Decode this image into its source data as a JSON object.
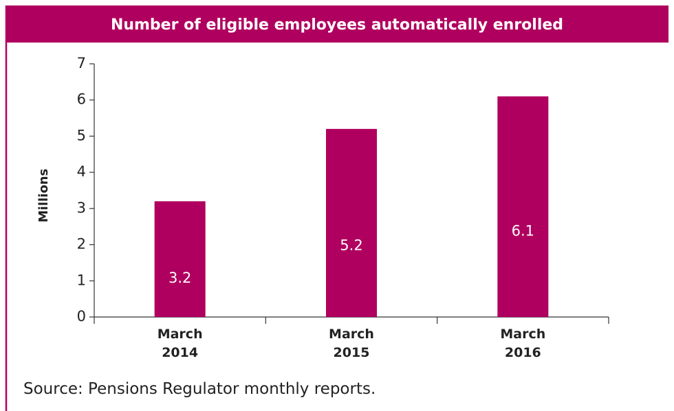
{
  "chart_data": {
    "type": "bar",
    "title": "Number of eligible employees automatically enrolled",
    "categories": [
      "March 2014",
      "March 2015",
      "March 2016"
    ],
    "values": [
      3.2,
      5.2,
      6.1
    ],
    "color": "#b0005f",
    "y_label": "Millions",
    "ylim": [
      0,
      7
    ],
    "yticks": [
      0,
      1,
      2,
      3,
      4,
      5,
      6,
      7
    ],
    "source": "Source: Pensions Regulator monthly reports."
  }
}
